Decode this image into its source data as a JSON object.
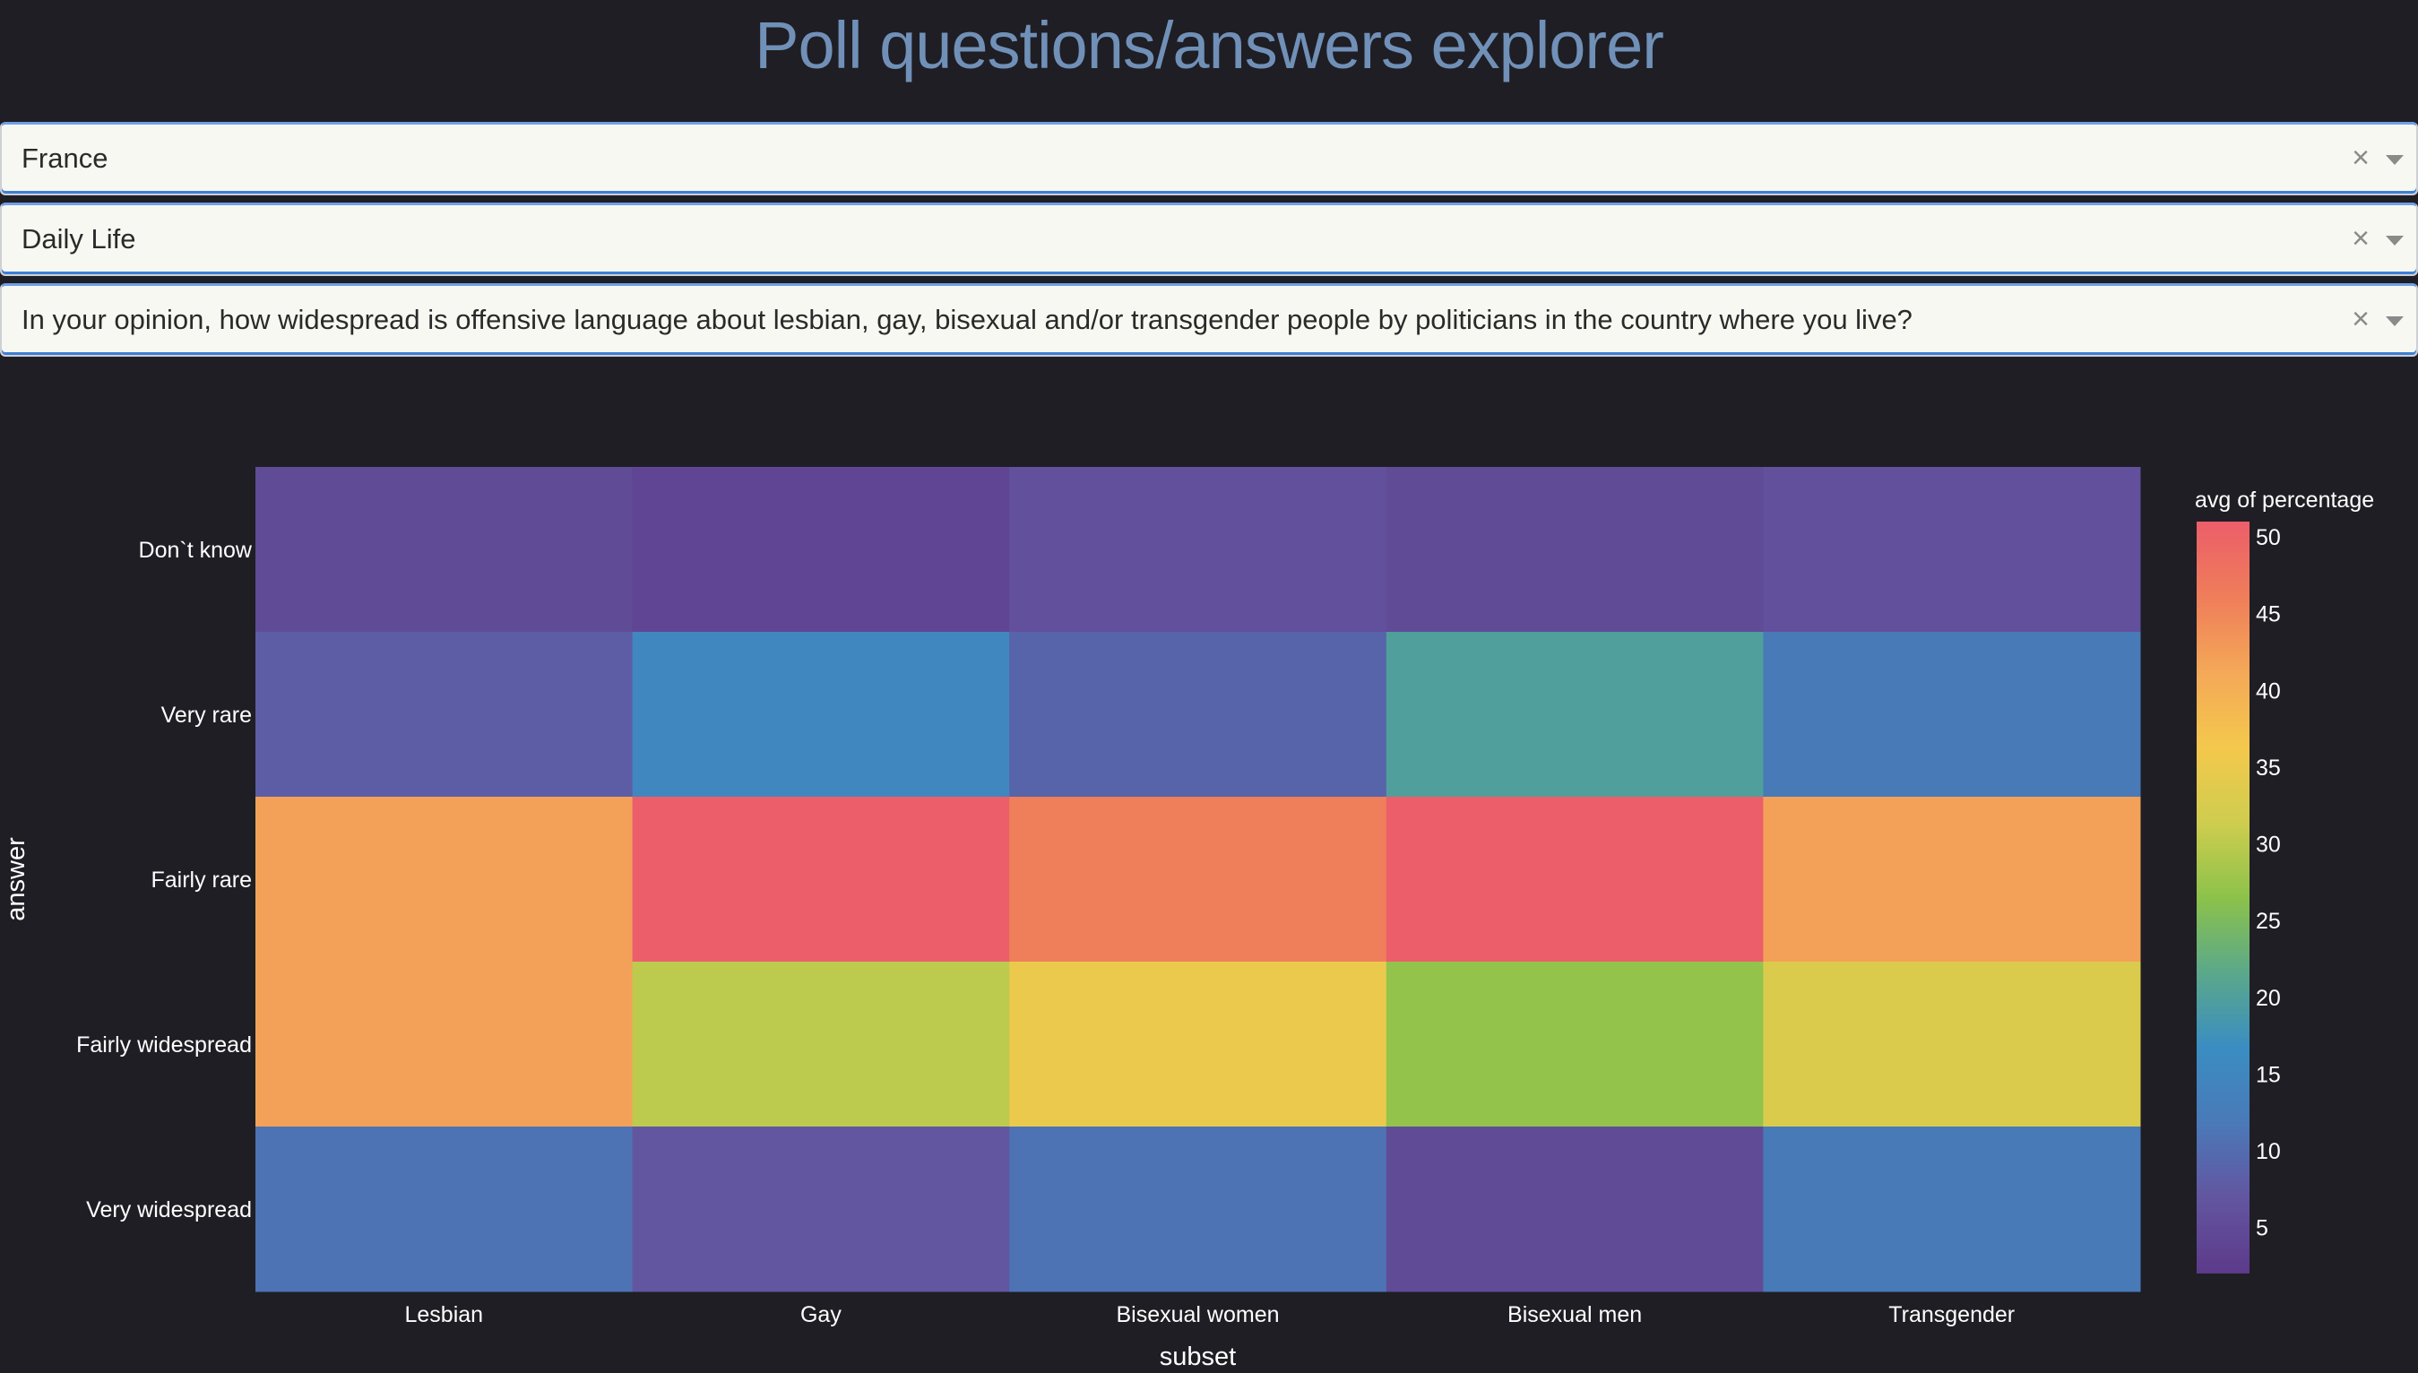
{
  "page": {
    "title": "Poll questions/answers explorer"
  },
  "filters": {
    "country": "France",
    "category": "Daily Life",
    "question": "In your opinion, how widespread is offensive language about lesbian, gay, bisexual and/or transgender people by politicians in the country where you live?",
    "clear_symbol": "×"
  },
  "chart_data": {
    "type": "heatmap",
    "title": "",
    "xlabel": "subset",
    "ylabel": "answer",
    "x": [
      "Lesbian",
      "Gay",
      "Bisexual women",
      "Bisexual men",
      "Transgender"
    ],
    "y": [
      "Don`t know",
      "Very rare",
      "Fairly rare",
      "Fairly widespread",
      "Very widespread"
    ],
    "z": [
      [
        5,
        4,
        6,
        5,
        6
      ],
      [
        8,
        15,
        9,
        20,
        12
      ],
      [
        42,
        51,
        46,
        51,
        42
      ],
      [
        42,
        30,
        35,
        27,
        33
      ],
      [
        11,
        7,
        11,
        5,
        12
      ]
    ],
    "colorbar": {
      "title": "avg of percentage",
      "range": [
        2,
        51
      ],
      "ticks": [
        5,
        10,
        15,
        20,
        25,
        30,
        35,
        40,
        45,
        50
      ]
    },
    "colorscale": [
      "#5c3a8a",
      "#6355a0",
      "#4a79b8",
      "#3a8dc2",
      "#5ba88a",
      "#8cc24a",
      "#cfcd4e",
      "#f4c84c",
      "#f4a858",
      "#ef7d5a",
      "#ec5e6a"
    ],
    "colors": {
      "text": "#ffffff",
      "background": "#1f1e24"
    }
  }
}
